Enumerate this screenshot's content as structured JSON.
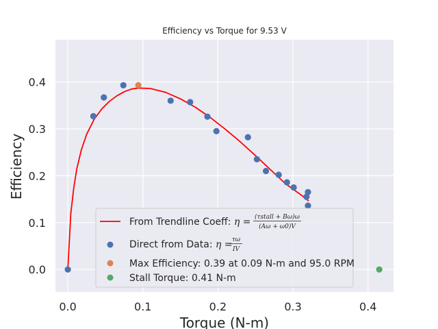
{
  "chart_data": {
    "type": "scatter",
    "title": "Efficiency vs Torque for 9.53 V",
    "xlabel": "Torque (N-m)",
    "ylabel": "Efficiency",
    "xlim": [
      -0.0165,
      0.434
    ],
    "ylim": [
      -0.048,
      0.49
    ],
    "xticks": [
      0.0,
      0.1,
      0.2,
      0.3,
      0.4
    ],
    "xtick_labels": [
      "0.0",
      "0.1",
      "0.2",
      "0.3",
      "0.4"
    ],
    "yticks": [
      0.0,
      0.1,
      0.2,
      0.3,
      0.4
    ],
    "ytick_labels": [
      "0.0",
      "0.1",
      "0.2",
      "0.3",
      "0.4"
    ],
    "grid": true,
    "legend_position": "lower-center",
    "series": [
      {
        "name": "Direct from Data",
        "kind": "scatter",
        "color": "#4c72b0",
        "points": [
          [
            0.0,
            0.0
          ],
          [
            0.034,
            0.327
          ],
          [
            0.048,
            0.367
          ],
          [
            0.074,
            0.393
          ],
          [
            0.137,
            0.36
          ],
          [
            0.163,
            0.357
          ],
          [
            0.186,
            0.326
          ],
          [
            0.198,
            0.295
          ],
          [
            0.24,
            0.282
          ],
          [
            0.252,
            0.235
          ],
          [
            0.264,
            0.21
          ],
          [
            0.281,
            0.202
          ],
          [
            0.292,
            0.186
          ],
          [
            0.301,
            0.175
          ],
          [
            0.318,
            0.155
          ],
          [
            0.32,
            0.165
          ],
          [
            0.32,
            0.136
          ]
        ]
      },
      {
        "name": "From Trendline Coeff",
        "kind": "line",
        "color": "#ff0000",
        "points": [
          [
            0.0,
            0.0
          ],
          [
            0.004,
            0.12
          ],
          [
            0.008,
            0.175
          ],
          [
            0.012,
            0.215
          ],
          [
            0.018,
            0.255
          ],
          [
            0.025,
            0.288
          ],
          [
            0.035,
            0.32
          ],
          [
            0.045,
            0.342
          ],
          [
            0.055,
            0.358
          ],
          [
            0.065,
            0.37
          ],
          [
            0.075,
            0.379
          ],
          [
            0.085,
            0.385
          ],
          [
            0.095,
            0.387
          ],
          [
            0.11,
            0.386
          ],
          [
            0.13,
            0.378
          ],
          [
            0.15,
            0.364
          ],
          [
            0.17,
            0.346
          ],
          [
            0.19,
            0.324
          ],
          [
            0.21,
            0.299
          ],
          [
            0.23,
            0.272
          ],
          [
            0.25,
            0.243
          ],
          [
            0.27,
            0.213
          ],
          [
            0.29,
            0.183
          ],
          [
            0.31,
            0.16
          ],
          [
            0.321,
            0.146
          ]
        ]
      },
      {
        "name": "Max Efficiency",
        "kind": "scatter",
        "color": "#dd8452",
        "points": [
          [
            0.094,
            0.393
          ]
        ]
      },
      {
        "name": "Stall Torque",
        "kind": "scatter",
        "color": "#55a868",
        "points": [
          [
            0.415,
            0.0
          ]
        ]
      }
    ],
    "legend": {
      "trend_prefix": "From Trendline Coeff: ",
      "trend_lhs": "η =",
      "trend_num": "(τstall + Bω)ω",
      "trend_den": "(Aω + ω0)V",
      "direct_prefix": "Direct from Data: ",
      "direct_lhs": "η =",
      "direct_num": "τω",
      "direct_den": "IV",
      "max_label": "Max Efficiency: 0.39 at 0.09 N-m and 95.0 RPM",
      "stall_label": "Stall Torque: 0.41 N-m"
    }
  }
}
